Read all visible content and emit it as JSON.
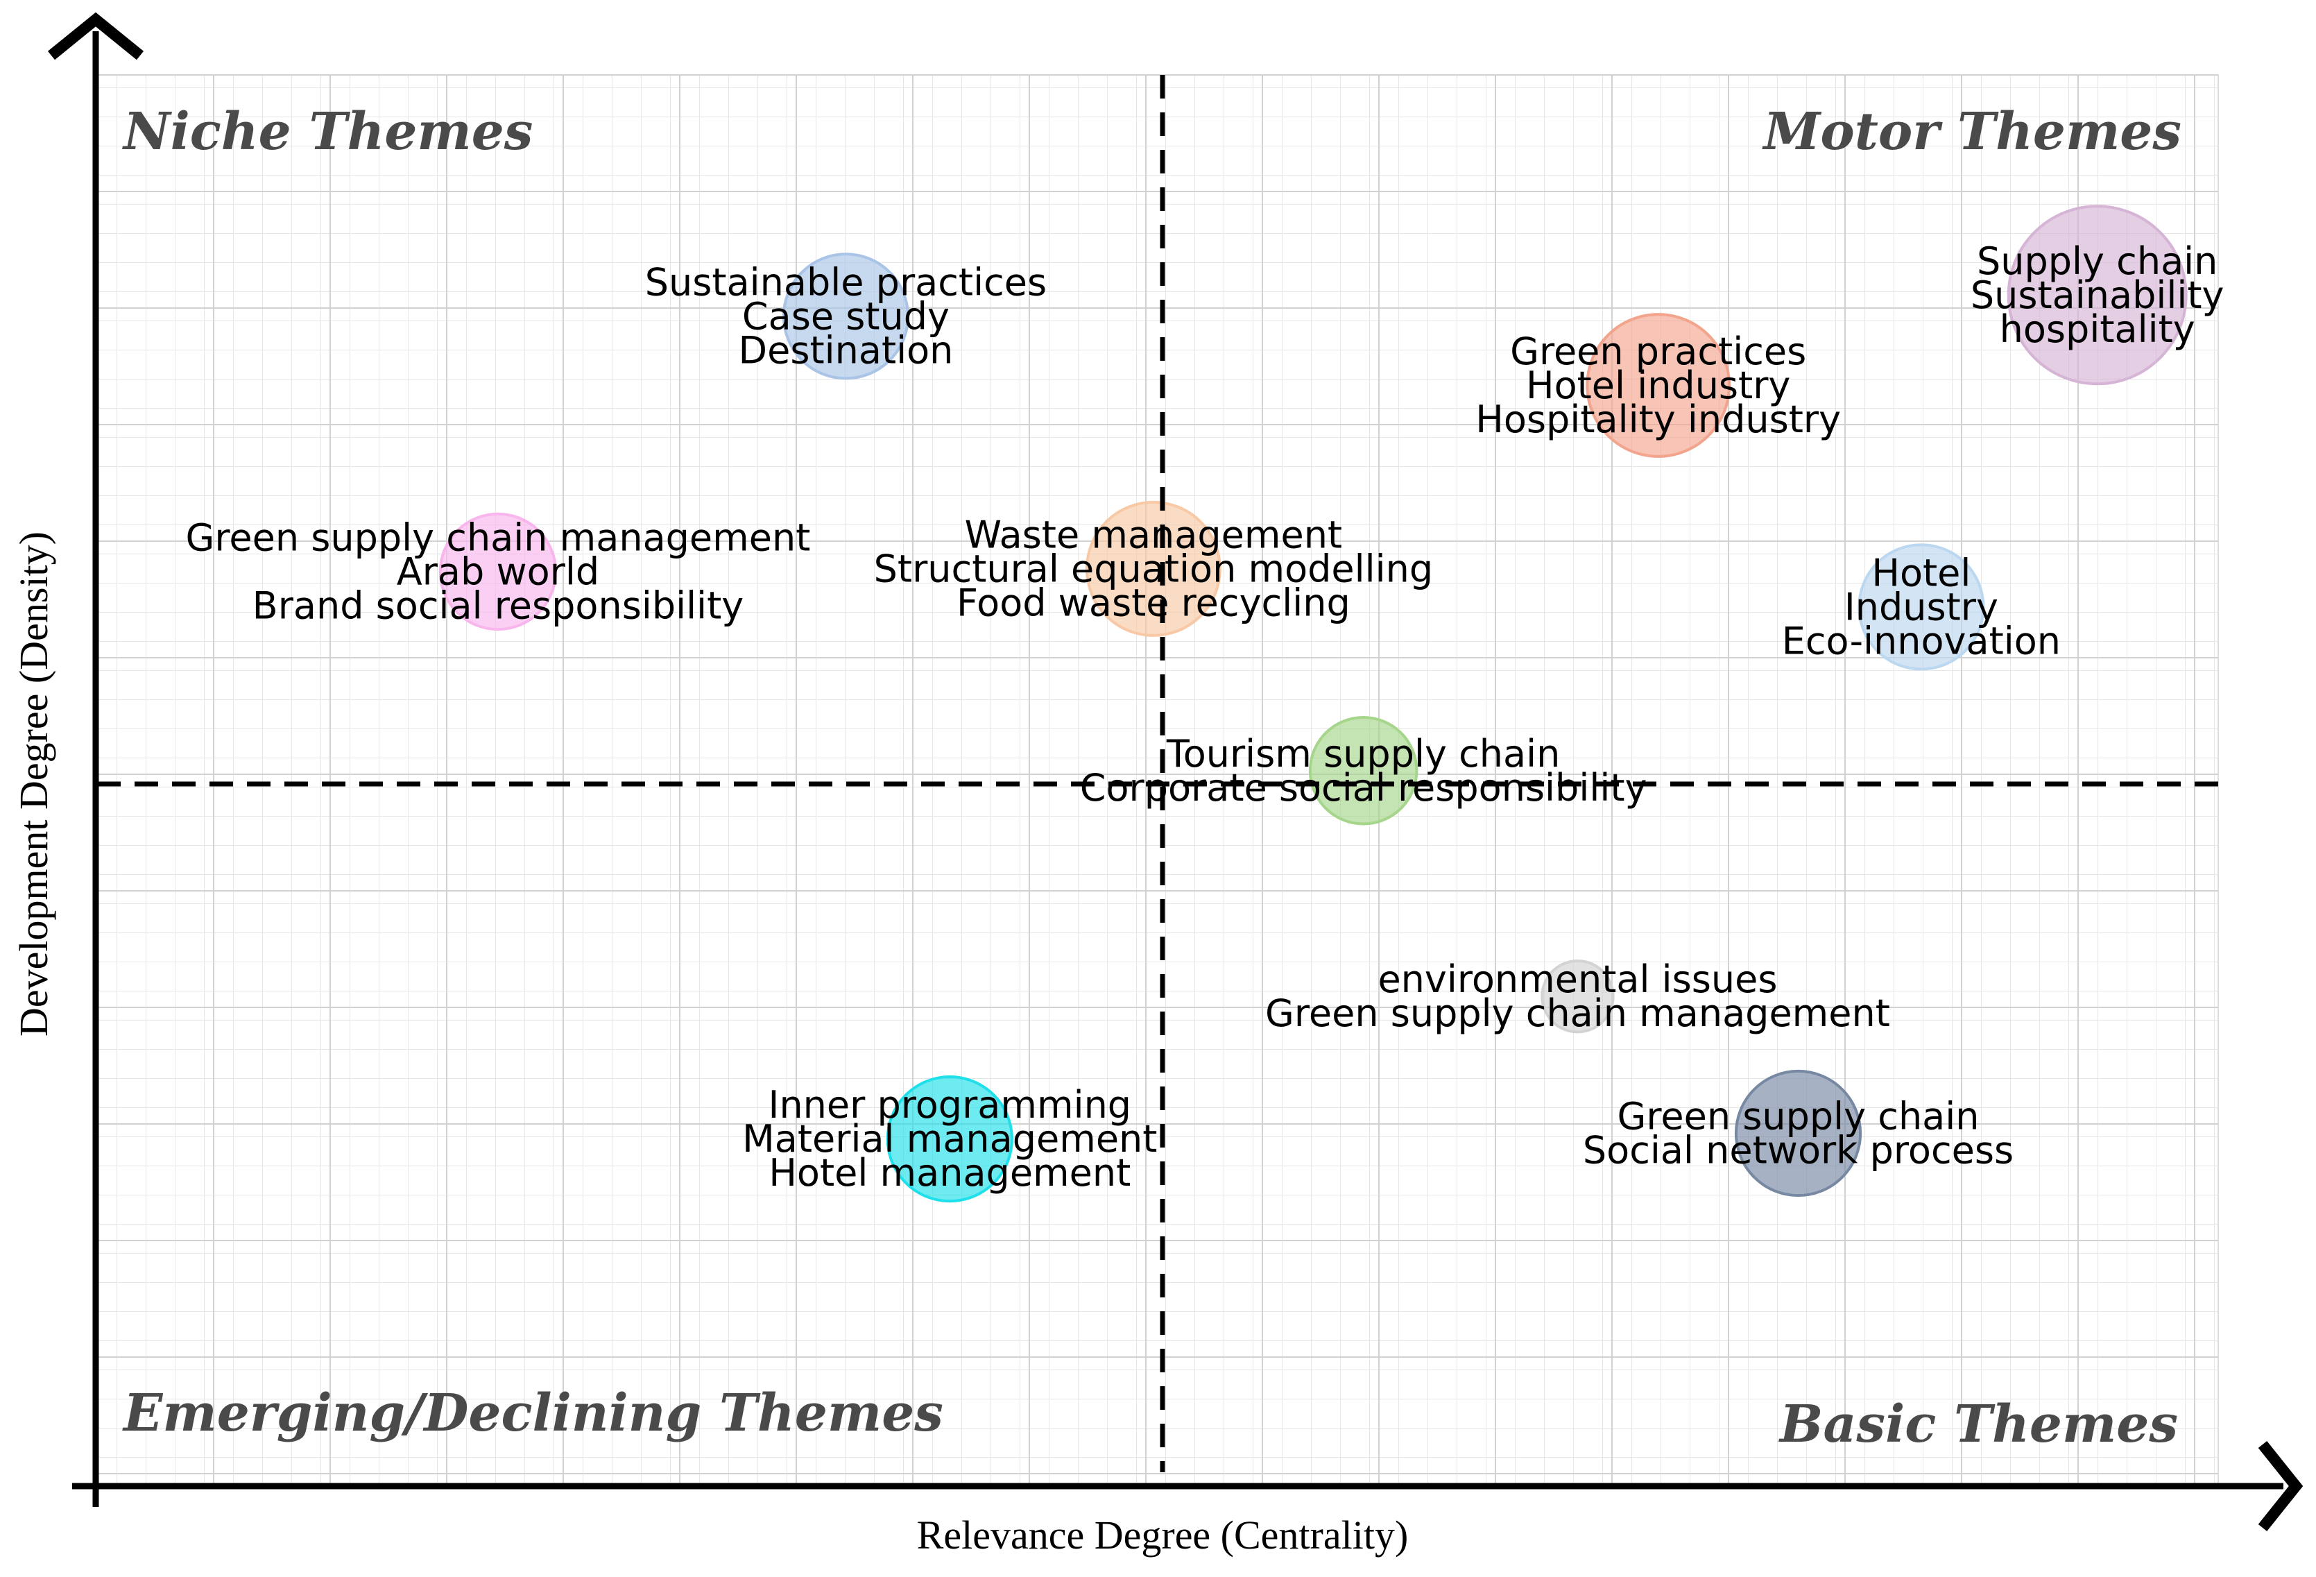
{
  "chart_data": {
    "type": "scatter",
    "xlabel": "Relevance Degree (Centrality)",
    "ylabel": "Development Degree (Density)",
    "quadrants": {
      "top_left": "Niche Themes",
      "top_right": "Motor Themes",
      "bottom_left": "Emerging/Declining Themes",
      "bottom_right": "Basic Themes"
    },
    "grid": true,
    "points": [
      {
        "lines": [
          "Sustainable practices",
          "Case study",
          "Destination"
        ],
        "x": 0.353,
        "y": 0.829,
        "size": 0.7,
        "color": "#a9c4e6"
      },
      {
        "lines": [
          "Supply chain",
          "Sustainability",
          "hospitality"
        ],
        "x": 0.943,
        "y": 0.844,
        "size": 1.0,
        "color": "#d6b4d6"
      },
      {
        "lines": [
          "Green practices",
          "Hotel industry",
          "Hospitality industry"
        ],
        "x": 0.736,
        "y": 0.78,
        "size": 0.8,
        "color": "#f3a48d"
      },
      {
        "lines": [
          "Green supply chain management",
          "Arab world",
          "Brand social responsibility"
        ],
        "x": 0.189,
        "y": 0.648,
        "size": 0.65,
        "color": "#f8b6ec"
      },
      {
        "lines": [
          "Waste management",
          "Structural equation modelling",
          "Food waste recycling"
        ],
        "x": 0.498,
        "y": 0.65,
        "size": 0.75,
        "color": "#f8c9a6"
      },
      {
        "lines": [
          "Hotel",
          "Industry",
          "Eco-innovation"
        ],
        "x": 0.86,
        "y": 0.623,
        "size": 0.7,
        "color": "#bcd7f0"
      },
      {
        "lines": [
          "Tourism supply chain",
          "Corporate social responsibility"
        ],
        "x": 0.597,
        "y": 0.507,
        "size": 0.6,
        "color": "#a6d58c"
      },
      {
        "lines": [
          "environmental issues",
          "Green supply chain management"
        ],
        "x": 0.698,
        "y": 0.347,
        "size": 0.4,
        "color": "#d3d3d3"
      },
      {
        "lines": [
          "Inner programming",
          "Material management",
          "Hotel management"
        ],
        "x": 0.402,
        "y": 0.246,
        "size": 0.7,
        "color": "#1fe0ea"
      },
      {
        "lines": [
          "Green supply chain",
          "Social network process"
        ],
        "x": 0.802,
        "y": 0.25,
        "size": 0.7,
        "color": "#7788a3"
      }
    ]
  }
}
